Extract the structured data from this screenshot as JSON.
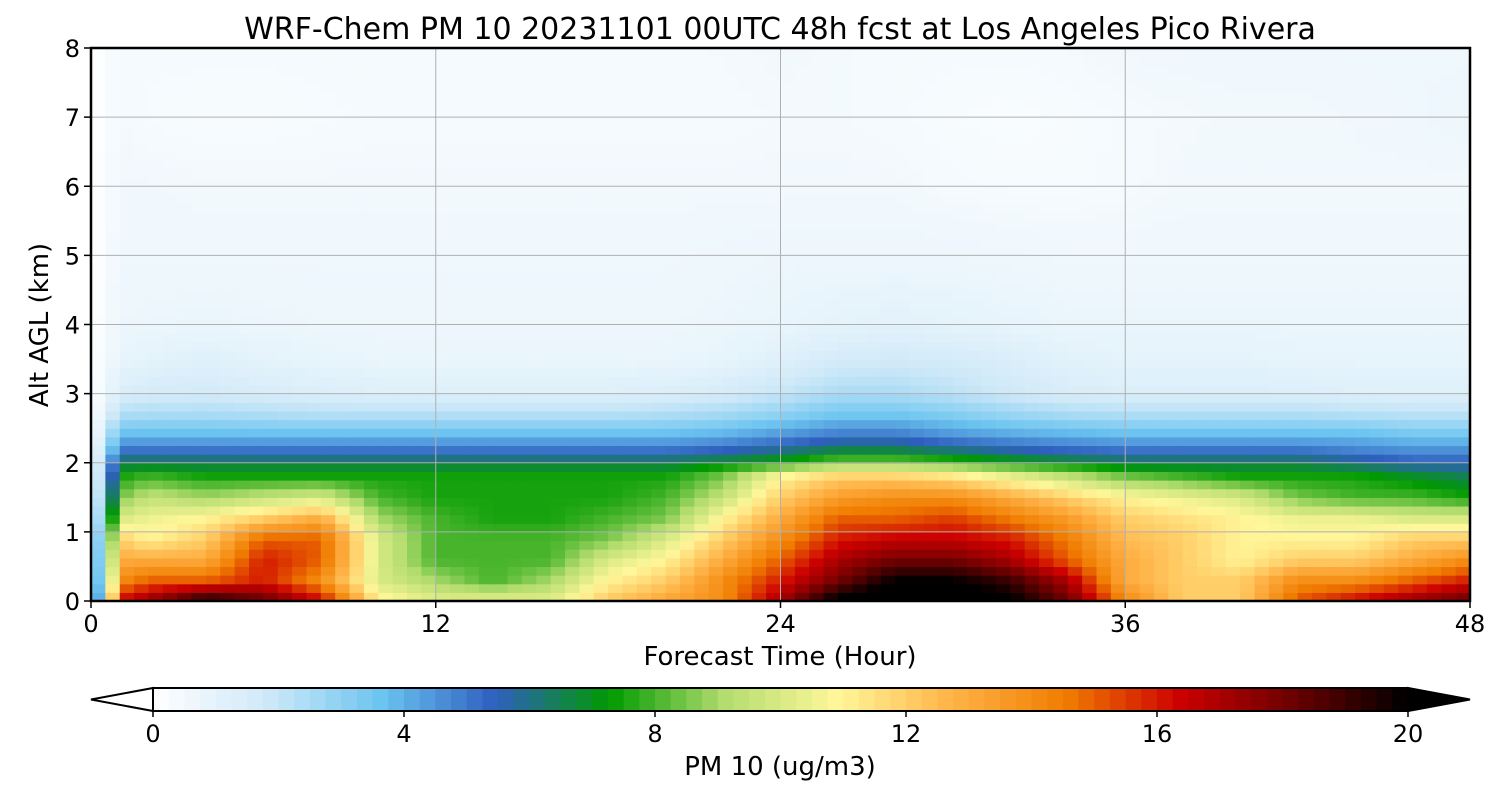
{
  "chart_data": {
    "type": "heatmap",
    "title": "WRF-Chem PM 10  20231101 00UTC 48h fcst at Los Angeles Pico Rivera",
    "xlabel": "Forecast Time (Hour)",
    "ylabel": "Alt AGL (km)",
    "xlim": [
      0,
      48
    ],
    "ylim": [
      0,
      8
    ],
    "x_ticks": [
      "0",
      "12",
      "24",
      "36",
      "48"
    ],
    "y_ticks": [
      "0",
      "1",
      "2",
      "3",
      "4",
      "5",
      "6",
      "7",
      "8"
    ],
    "grid": true,
    "colorbar": {
      "label": "PM 10  (ug/m3)",
      "range": [
        0,
        20
      ],
      "ticks": [
        "0",
        "4",
        "8",
        "12",
        "16",
        "20"
      ],
      "extend": "both",
      "colors": [
        "#ffffff",
        "#cfe9f8",
        "#6bc4f0",
        "#2e5fbf",
        "#009a00",
        "#b2dc6e",
        "#fff79a",
        "#ffb347",
        "#f07d00",
        "#cc0000",
        "#6a0000",
        "#000000"
      ]
    },
    "hours": [
      0,
      1,
      2,
      4,
      6,
      8,
      10,
      12,
      14,
      16,
      18,
      20,
      22,
      24,
      26,
      28,
      30,
      32,
      34,
      36,
      38,
      40,
      42,
      44,
      46,
      48
    ],
    "altitudes_km": [
      0.05,
      0.3,
      0.6,
      0.9,
      1.2,
      1.5,
      1.8,
      2.0,
      2.2,
      2.4,
      2.7,
      3.0,
      3.5,
      4.0,
      5.0,
      6.0,
      7.0,
      8.0
    ],
    "values": [
      [
        0,
        16,
        17,
        19,
        18,
        16,
        11,
        10,
        10,
        10,
        12,
        13,
        14,
        17,
        20,
        21,
        21,
        20,
        18,
        14,
        12,
        12,
        15,
        16,
        17,
        18
      ],
      [
        0,
        14,
        15,
        15,
        16,
        14,
        10,
        9,
        8,
        9,
        11,
        12,
        14,
        16,
        18,
        20,
        20,
        19,
        17,
        13,
        12,
        12,
        14,
        14,
        15,
        16
      ],
      [
        0,
        13,
        13,
        13,
        16,
        15,
        10,
        8,
        8,
        8,
        10,
        11,
        13,
        15,
        17,
        18,
        18,
        17,
        15,
        13,
        12,
        11,
        12,
        12,
        13,
        14
      ],
      [
        0,
        12,
        11,
        12,
        15,
        15,
        10,
        8,
        8,
        8,
        8.5,
        10,
        12,
        14,
        16,
        16.5,
        16.5,
        16,
        14.5,
        12.5,
        12,
        11,
        11,
        11,
        12,
        12
      ],
      [
        0,
        10,
        10.5,
        11,
        12,
        13,
        9,
        8,
        7.5,
        7.5,
        8,
        8.5,
        11,
        13,
        15,
        15,
        15.5,
        14.5,
        13.5,
        12,
        11.5,
        11,
        10.5,
        10.5,
        10,
        10
      ],
      [
        0,
        8.5,
        9.5,
        9,
        9.5,
        10,
        8,
        7.5,
        7.5,
        7.5,
        7.5,
        8,
        9.5,
        12,
        13.5,
        14,
        14,
        13,
        12,
        11,
        10.5,
        10,
        8.5,
        8,
        8,
        7.5
      ],
      [
        0,
        7.5,
        8,
        7.5,
        7.5,
        7.5,
        7.5,
        7.5,
        7.5,
        7.5,
        7.5,
        7.5,
        8.5,
        11,
        12,
        12,
        11.5,
        10.5,
        9.5,
        8.5,
        8,
        7.5,
        7.5,
        7.5,
        7,
        6.5
      ],
      [
        0,
        6.5,
        6.5,
        6.5,
        6.5,
        6.5,
        6.5,
        6.5,
        6.5,
        6.5,
        6.5,
        6.5,
        7,
        7.5,
        8.5,
        8.5,
        8,
        7.5,
        7,
        6.5,
        6.5,
        6.5,
        6.5,
        6,
        5.5,
        5.5
      ],
      [
        0,
        5,
        5,
        5,
        5,
        5,
        5,
        5,
        5,
        5,
        5,
        5,
        5.3,
        5.8,
        6.5,
        6.5,
        6,
        5.5,
        5.2,
        5,
        5,
        5,
        5,
        4.7,
        4.5,
        4.5
      ],
      [
        0,
        3.8,
        3.8,
        3.8,
        3.8,
        3.8,
        3.8,
        3.8,
        3.8,
        3.8,
        3.8,
        3.8,
        4,
        4.5,
        5,
        5,
        4.5,
        4.2,
        4,
        3.8,
        3.8,
        3.8,
        3.8,
        3.8,
        3.5,
        3.5
      ],
      [
        0,
        2.4,
        2.5,
        2.5,
        2.4,
        2.3,
        2.3,
        2.3,
        2.3,
        2.3,
        2.3,
        2.4,
        2.6,
        3,
        3.5,
        3.5,
        3.2,
        2.8,
        2.5,
        2.4,
        2.4,
        2.4,
        2.4,
        2.3,
        2.2,
        2.2
      ],
      [
        0,
        1.4,
        1.6,
        1.7,
        1.5,
        1.4,
        1.3,
        1.3,
        1.3,
        1.3,
        1.3,
        1.4,
        1.6,
        2,
        2.5,
        2.5,
        2.2,
        1.8,
        1.5,
        1.4,
        1.4,
        1.4,
        1.4,
        1.3,
        1.3,
        1.3
      ],
      [
        0,
        0.9,
        1,
        1.2,
        1,
        0.9,
        0.8,
        0.8,
        0.8,
        0.8,
        0.8,
        0.8,
        0.9,
        1.2,
        1.6,
        1.7,
        1.6,
        1.4,
        1.1,
        1,
        1,
        1,
        0.9,
        0.9,
        0.9,
        0.9
      ],
      [
        0,
        0.7,
        0.75,
        0.8,
        0.75,
        0.7,
        0.7,
        0.7,
        0.7,
        0.7,
        0.7,
        0.7,
        0.75,
        0.85,
        1,
        1.1,
        1,
        0.9,
        0.8,
        0.8,
        0.8,
        0.8,
        0.8,
        0.8,
        0.8,
        0.8
      ],
      [
        0,
        0.6,
        0.6,
        0.6,
        0.6,
        0.6,
        0.6,
        0.6,
        0.6,
        0.6,
        0.6,
        0.6,
        0.65,
        0.7,
        0.7,
        0.7,
        0.7,
        0.65,
        0.6,
        0.6,
        0.6,
        0.6,
        0.6,
        0.6,
        0.6,
        0.6
      ],
      [
        0,
        0.55,
        0.55,
        0.5,
        0.5,
        0.5,
        0.5,
        0.5,
        0.5,
        0.5,
        0.5,
        0.5,
        0.5,
        0.5,
        0.5,
        0.5,
        0.4,
        0.35,
        0.35,
        0.4,
        0.5,
        0.5,
        0.5,
        0.5,
        0.5,
        0.5
      ],
      [
        0,
        0.45,
        0.35,
        0.3,
        0.3,
        0.35,
        0.4,
        0.4,
        0.4,
        0.4,
        0.4,
        0.4,
        0.4,
        0.45,
        0.45,
        0.4,
        0.3,
        0.25,
        0.3,
        0.4,
        0.45,
        0.5,
        0.5,
        0.55,
        0.6,
        0.7
      ],
      [
        0,
        0.4,
        0.4,
        0.4,
        0.4,
        0.4,
        0.4,
        0.4,
        0.4,
        0.4,
        0.4,
        0.4,
        0.45,
        0.5,
        0.45,
        0.4,
        0.4,
        0.4,
        0.45,
        0.55,
        0.6,
        0.6,
        0.6,
        0.6,
        0.6,
        0.6
      ]
    ]
  }
}
